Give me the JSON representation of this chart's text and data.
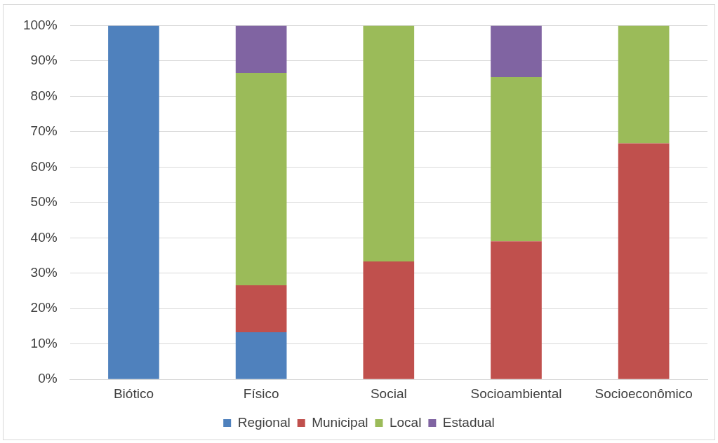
{
  "chart_data": {
    "type": "bar",
    "stacked": true,
    "categories": [
      "Biótico",
      "Físico",
      "Social",
      "Socioambiental",
      "Socioeconômico"
    ],
    "series": [
      {
        "name": "Regional",
        "color": "#4f81bd",
        "values": [
          100,
          13.3,
          0,
          0,
          0
        ]
      },
      {
        "name": "Municipal",
        "color": "#c0504d",
        "values": [
          0,
          13.3,
          33.3,
          39,
          66.7
        ]
      },
      {
        "name": "Local",
        "color": "#9bbb59",
        "values": [
          0,
          60,
          66.7,
          46.4,
          33.3
        ]
      },
      {
        "name": "Estadual",
        "color": "#8064a2",
        "values": [
          0,
          13.4,
          0,
          14.6,
          0
        ]
      }
    ],
    "ylim": [
      0,
      100
    ],
    "yticks": [
      {
        "value": 0,
        "label": "0%"
      },
      {
        "value": 10,
        "label": "10%"
      },
      {
        "value": 20,
        "label": "20%"
      },
      {
        "value": 30,
        "label": "30%"
      },
      {
        "value": 40,
        "label": "40%"
      },
      {
        "value": 50,
        "label": "50%"
      },
      {
        "value": 60,
        "label": "60%"
      },
      {
        "value": 70,
        "label": "70%"
      },
      {
        "value": 80,
        "label": "80%"
      },
      {
        "value": 90,
        "label": "90%"
      },
      {
        "value": 100,
        "label": "100%"
      }
    ],
    "grid": "y",
    "legend": "bottom"
  }
}
